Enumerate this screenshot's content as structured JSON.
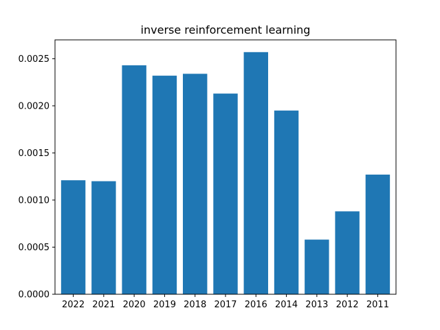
{
  "chart_data": {
    "type": "bar",
    "title": "inverse reinforcement learning",
    "xlabel": "",
    "ylabel": "",
    "categories": [
      "2022",
      "2021",
      "2020",
      "2019",
      "2018",
      "2017",
      "2016",
      "2014",
      "2013",
      "2012",
      "2011"
    ],
    "values": [
      0.00121,
      0.0012,
      0.00243,
      0.00232,
      0.00234,
      0.00213,
      0.00257,
      0.00195,
      0.00058,
      0.00088,
      0.00127
    ],
    "ylim": [
      0,
      0.0027
    ],
    "yticks": [
      0.0,
      0.0005,
      0.001,
      0.0015,
      0.002,
      0.0025
    ],
    "ytick_labels": [
      "0.0000",
      "0.0005",
      "0.0010",
      "0.0015",
      "0.0020",
      "0.0025"
    ],
    "grid": false,
    "bar_color": "#1f77b4"
  }
}
